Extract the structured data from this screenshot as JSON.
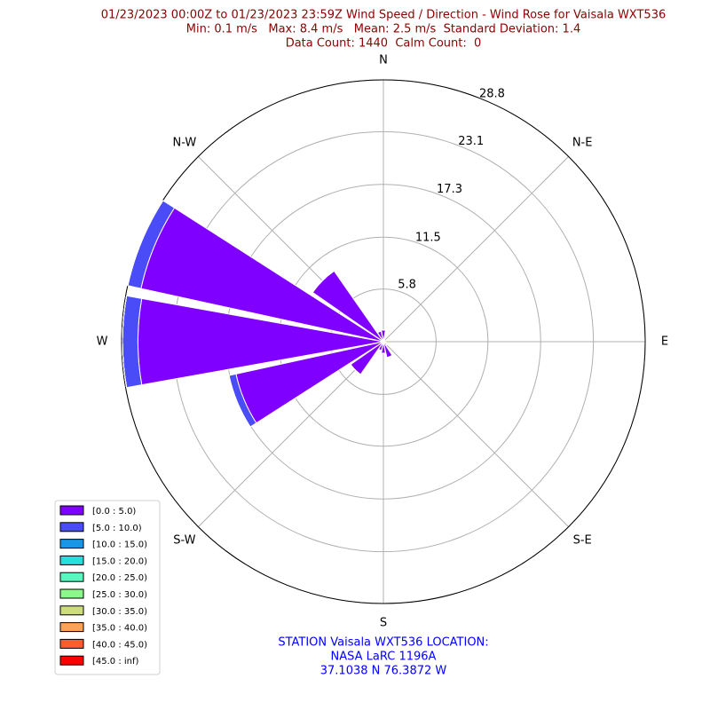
{
  "chart_data": {
    "type": "windrose",
    "title_lines": [
      "01/23/2023 00:00Z to 01/23/2023 23:59Z Wind Speed / Direction - Wind Rose for Vaisala WXT536",
      "Min: 0.1 m/s   Max: 8.4 m/s   Mean: 2.5 m/s  Standard Deviation: 1.4",
      "Data Count: 1440  Calm Count:  0"
    ],
    "footnote_lines": [
      "STATION Vaisala WXT536 LOCATION:",
      "NASA LaRC 1196A",
      "37.1038 N 76.3872 W"
    ],
    "x": [
      0,
      22.5,
      45,
      67.5,
      90,
      112.5,
      135,
      157.5,
      180,
      202.5,
      225,
      247.5,
      270,
      292.5,
      315,
      337.5
    ],
    "xticks": [
      {
        "value": 0,
        "label": "N"
      },
      {
        "value": 45,
        "label": "N-E"
      },
      {
        "value": 90,
        "label": "E"
      },
      {
        "value": 135,
        "label": "S-E"
      },
      {
        "value": 180,
        "label": "S"
      },
      {
        "value": 225,
        "label": "S-W"
      },
      {
        "value": 270,
        "label": "W"
      },
      {
        "value": 315,
        "label": "N-W"
      }
    ],
    "ylim": [
      0,
      28.8
    ],
    "yticks": [
      5.8,
      11.5,
      17.3,
      23.1,
      28.8
    ],
    "grid": true,
    "legend": "lower left",
    "series": [
      {
        "name": "[0.0 : 5.0)",
        "color": "#8000ff",
        "values": [
          1.3,
          0.3,
          0.2,
          0.2,
          0.2,
          0.3,
          0.5,
          1.8,
          1.3,
          1.0,
          4.4,
          16.6,
          27.0,
          27.3,
          9.5,
          1.2
        ]
      },
      {
        "name": "[5.0 : 10.0)",
        "color": "#4a4df7",
        "values": [
          0,
          0,
          0,
          0,
          0,
          0,
          0,
          0,
          0,
          0,
          0,
          0.8,
          1.7,
          1.5,
          0,
          0
        ]
      },
      {
        "name": "[10.0 : 15.0)",
        "color": "#1996e6",
        "values": [
          0,
          0,
          0,
          0,
          0,
          0,
          0,
          0,
          0,
          0,
          0,
          0,
          0,
          0,
          0,
          0
        ]
      },
      {
        "name": "[15.0 : 20.0)",
        "color": "#2adddd",
        "values": [
          0,
          0,
          0,
          0,
          0,
          0,
          0,
          0,
          0,
          0,
          0,
          0,
          0,
          0,
          0,
          0
        ]
      },
      {
        "name": "[20.0 : 25.0)",
        "color": "#5af8c0",
        "values": [
          0,
          0,
          0,
          0,
          0,
          0,
          0,
          0,
          0,
          0,
          0,
          0,
          0,
          0,
          0,
          0
        ]
      },
      {
        "name": "[25.0 : 30.0)",
        "color": "#8cf88c",
        "values": [
          0,
          0,
          0,
          0,
          0,
          0,
          0,
          0,
          0,
          0,
          0,
          0,
          0,
          0,
          0,
          0
        ]
      },
      {
        "name": "[30.0 : 35.0)",
        "color": "#cedd7c",
        "values": [
          0,
          0,
          0,
          0,
          0,
          0,
          0,
          0,
          0,
          0,
          0,
          0,
          0,
          0,
          0,
          0
        ]
      },
      {
        "name": "[35.0 : 40.0)",
        "color": "#ffa256",
        "values": [
          0,
          0,
          0,
          0,
          0,
          0,
          0,
          0,
          0,
          0,
          0,
          0,
          0,
          0,
          0,
          0
        ]
      },
      {
        "name": "[40.0 : 45.0)",
        "color": "#ff5a30",
        "values": [
          0,
          0,
          0,
          0,
          0,
          0,
          0,
          0,
          0,
          0,
          0,
          0,
          0,
          0,
          0,
          0
        ]
      },
      {
        "name": "[45.0 : inf)",
        "color": "#ff0000",
        "values": [
          0,
          0,
          0,
          0,
          0,
          0,
          0,
          0,
          0,
          0,
          0,
          0,
          0,
          0,
          0,
          0
        ]
      }
    ]
  }
}
